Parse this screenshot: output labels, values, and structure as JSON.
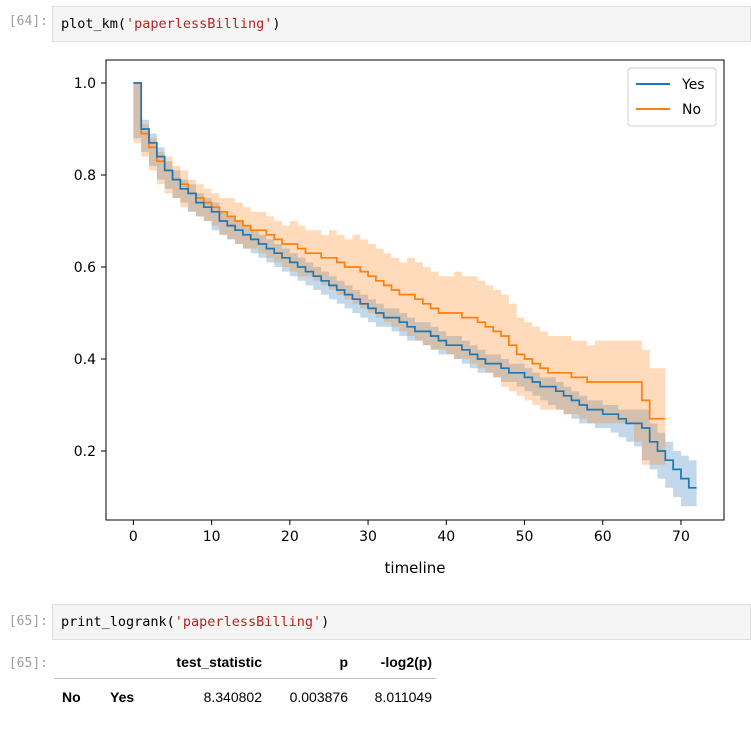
{
  "cells": {
    "c64": {
      "prompt": "[64]:",
      "code_fn": "plot_km(",
      "code_arg": "'paperlessBilling'",
      "code_close": ")"
    },
    "c65_in": {
      "prompt": "[65]:",
      "code_fn": "print_logrank(",
      "code_arg": "'paperlessBilling'",
      "code_close": ")"
    },
    "c65_out": {
      "prompt": "[65]:"
    }
  },
  "chart_data": {
    "type": "line",
    "xlabel": "timeline",
    "ylabel": "",
    "xlim": [
      -3.5,
      75.5
    ],
    "ylim": [
      0.05,
      1.05
    ],
    "xticks": [
      0,
      10,
      20,
      30,
      40,
      50,
      60,
      70
    ],
    "yticks": [
      0.2,
      0.4,
      0.6,
      0.8,
      1.0
    ],
    "ytick_labels": [
      "0.2",
      "0.4",
      "0.6",
      "0.8",
      "1.0"
    ],
    "legend_position": "top-right",
    "grid": false,
    "series": [
      {
        "name": "Yes",
        "color": "#1f77b4",
        "x": [
          0,
          1,
          2,
          3,
          4,
          5,
          6,
          7,
          8,
          9,
          10,
          11,
          12,
          13,
          14,
          15,
          16,
          17,
          18,
          19,
          20,
          21,
          22,
          23,
          24,
          25,
          26,
          27,
          28,
          29,
          30,
          31,
          32,
          33,
          34,
          35,
          36,
          37,
          38,
          39,
          40,
          41,
          42,
          43,
          44,
          45,
          46,
          47,
          48,
          49,
          50,
          51,
          52,
          53,
          54,
          55,
          56,
          57,
          58,
          59,
          60,
          61,
          62,
          63,
          64,
          65,
          66,
          67,
          68,
          69,
          70,
          71,
          72
        ],
        "y": [
          1.0,
          0.9,
          0.87,
          0.84,
          0.81,
          0.79,
          0.77,
          0.76,
          0.74,
          0.73,
          0.72,
          0.7,
          0.69,
          0.68,
          0.67,
          0.66,
          0.65,
          0.64,
          0.63,
          0.62,
          0.61,
          0.6,
          0.59,
          0.58,
          0.57,
          0.56,
          0.55,
          0.54,
          0.53,
          0.52,
          0.51,
          0.5,
          0.49,
          0.49,
          0.48,
          0.47,
          0.46,
          0.46,
          0.45,
          0.44,
          0.43,
          0.43,
          0.42,
          0.41,
          0.4,
          0.39,
          0.39,
          0.38,
          0.37,
          0.37,
          0.36,
          0.35,
          0.34,
          0.34,
          0.33,
          0.32,
          0.31,
          0.3,
          0.29,
          0.29,
          0.28,
          0.28,
          0.27,
          0.26,
          0.26,
          0.25,
          0.22,
          0.2,
          0.18,
          0.16,
          0.14,
          0.12,
          0.12
        ],
        "ci_lower": [
          1.0,
          0.88,
          0.85,
          0.82,
          0.79,
          0.77,
          0.75,
          0.74,
          0.72,
          0.71,
          0.7,
          0.68,
          0.67,
          0.66,
          0.65,
          0.64,
          0.63,
          0.62,
          0.61,
          0.6,
          0.59,
          0.58,
          0.57,
          0.56,
          0.55,
          0.54,
          0.53,
          0.52,
          0.51,
          0.5,
          0.49,
          0.48,
          0.47,
          0.47,
          0.46,
          0.45,
          0.44,
          0.44,
          0.43,
          0.42,
          0.41,
          0.41,
          0.4,
          0.39,
          0.38,
          0.37,
          0.37,
          0.36,
          0.35,
          0.35,
          0.34,
          0.33,
          0.32,
          0.31,
          0.3,
          0.29,
          0.28,
          0.27,
          0.26,
          0.26,
          0.25,
          0.25,
          0.24,
          0.23,
          0.22,
          0.21,
          0.18,
          0.16,
          0.14,
          0.12,
          0.1,
          0.08,
          0.08
        ],
        "ci_upper": [
          1.0,
          0.92,
          0.89,
          0.86,
          0.83,
          0.81,
          0.79,
          0.78,
          0.76,
          0.75,
          0.74,
          0.72,
          0.71,
          0.7,
          0.69,
          0.68,
          0.67,
          0.66,
          0.65,
          0.64,
          0.63,
          0.62,
          0.61,
          0.6,
          0.59,
          0.58,
          0.57,
          0.56,
          0.55,
          0.54,
          0.53,
          0.52,
          0.51,
          0.51,
          0.5,
          0.49,
          0.48,
          0.48,
          0.47,
          0.46,
          0.45,
          0.45,
          0.44,
          0.43,
          0.42,
          0.41,
          0.41,
          0.4,
          0.39,
          0.39,
          0.38,
          0.37,
          0.36,
          0.36,
          0.35,
          0.34,
          0.33,
          0.32,
          0.31,
          0.31,
          0.3,
          0.3,
          0.29,
          0.29,
          0.29,
          0.29,
          0.26,
          0.24,
          0.22,
          0.2,
          0.19,
          0.18,
          0.18
        ]
      },
      {
        "name": "No",
        "color": "#ff7f0e",
        "x": [
          0,
          1,
          2,
          3,
          4,
          5,
          6,
          7,
          8,
          9,
          10,
          11,
          12,
          13,
          14,
          15,
          16,
          17,
          18,
          19,
          20,
          21,
          22,
          23,
          24,
          25,
          26,
          27,
          28,
          29,
          30,
          31,
          32,
          33,
          34,
          35,
          36,
          37,
          38,
          39,
          40,
          41,
          42,
          43,
          44,
          45,
          46,
          47,
          48,
          49,
          50,
          51,
          52,
          53,
          54,
          55,
          56,
          57,
          58,
          59,
          60,
          61,
          62,
          63,
          64,
          65,
          66,
          67,
          68
        ],
        "y": [
          1.0,
          0.89,
          0.86,
          0.83,
          0.81,
          0.79,
          0.78,
          0.76,
          0.75,
          0.74,
          0.73,
          0.72,
          0.71,
          0.7,
          0.69,
          0.68,
          0.68,
          0.67,
          0.66,
          0.65,
          0.65,
          0.64,
          0.63,
          0.63,
          0.62,
          0.62,
          0.61,
          0.6,
          0.6,
          0.59,
          0.58,
          0.57,
          0.56,
          0.55,
          0.54,
          0.54,
          0.53,
          0.52,
          0.51,
          0.5,
          0.5,
          0.5,
          0.49,
          0.49,
          0.48,
          0.47,
          0.46,
          0.45,
          0.43,
          0.41,
          0.4,
          0.39,
          0.38,
          0.37,
          0.37,
          0.37,
          0.36,
          0.36,
          0.35,
          0.35,
          0.35,
          0.35,
          0.35,
          0.35,
          0.35,
          0.31,
          0.27,
          0.27,
          0.27
        ],
        "ci_lower": [
          1.0,
          0.87,
          0.84,
          0.81,
          0.78,
          0.76,
          0.75,
          0.73,
          0.72,
          0.71,
          0.7,
          0.69,
          0.67,
          0.66,
          0.65,
          0.64,
          0.64,
          0.63,
          0.62,
          0.61,
          0.6,
          0.59,
          0.58,
          0.58,
          0.57,
          0.56,
          0.55,
          0.54,
          0.53,
          0.52,
          0.51,
          0.5,
          0.49,
          0.48,
          0.47,
          0.46,
          0.45,
          0.44,
          0.43,
          0.42,
          0.42,
          0.41,
          0.4,
          0.4,
          0.39,
          0.38,
          0.37,
          0.36,
          0.34,
          0.33,
          0.32,
          0.31,
          0.3,
          0.29,
          0.29,
          0.29,
          0.28,
          0.28,
          0.27,
          0.26,
          0.26,
          0.26,
          0.26,
          0.26,
          0.26,
          0.22,
          0.17,
          0.17,
          0.17
        ],
        "ci_upper": [
          1.0,
          0.91,
          0.88,
          0.85,
          0.84,
          0.82,
          0.81,
          0.79,
          0.78,
          0.77,
          0.76,
          0.75,
          0.75,
          0.74,
          0.73,
          0.72,
          0.72,
          0.71,
          0.7,
          0.69,
          0.7,
          0.69,
          0.68,
          0.68,
          0.67,
          0.68,
          0.67,
          0.66,
          0.67,
          0.66,
          0.65,
          0.64,
          0.63,
          0.62,
          0.61,
          0.62,
          0.61,
          0.6,
          0.59,
          0.58,
          0.58,
          0.59,
          0.58,
          0.58,
          0.57,
          0.56,
          0.55,
          0.54,
          0.52,
          0.49,
          0.48,
          0.47,
          0.46,
          0.45,
          0.45,
          0.45,
          0.44,
          0.44,
          0.43,
          0.44,
          0.44,
          0.44,
          0.44,
          0.44,
          0.44,
          0.42,
          0.38,
          0.38,
          0.38
        ]
      }
    ]
  },
  "logrank_table": {
    "headers": [
      "",
      "",
      "test_statistic",
      "p",
      "-log2(p)"
    ],
    "rows": [
      [
        "No",
        "Yes",
        "8.340802",
        "0.003876",
        "8.011049"
      ]
    ]
  }
}
